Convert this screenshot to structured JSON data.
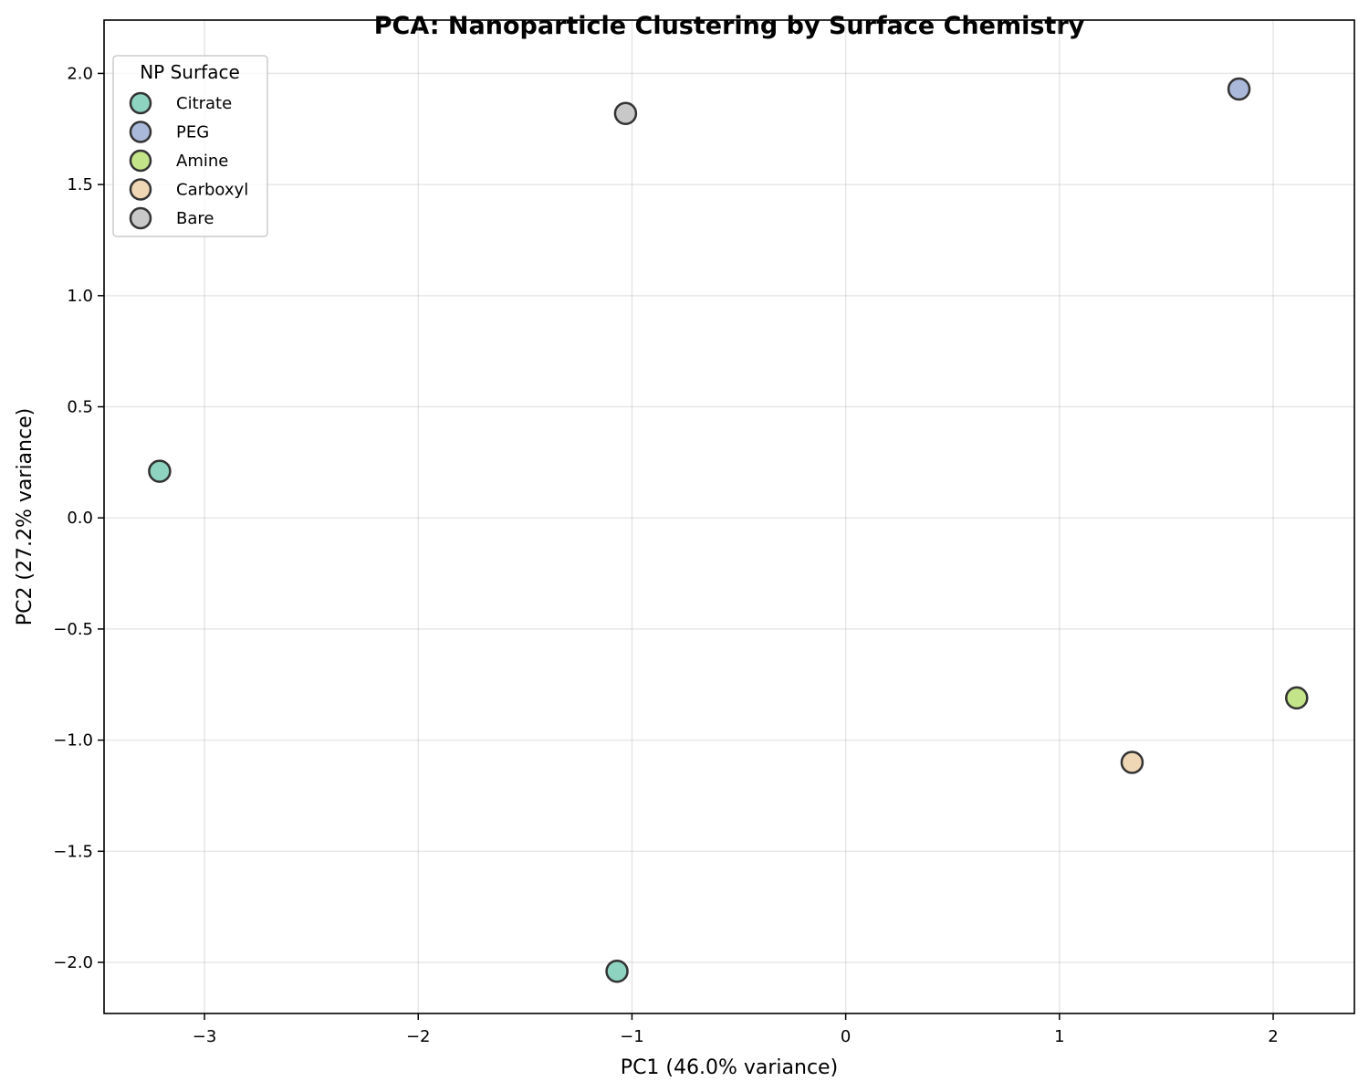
{
  "chart_data": {
    "type": "scatter",
    "title": "PCA: Nanoparticle Clustering by Surface Chemistry",
    "xlabel": "PC1 (46.0% variance)",
    "ylabel": "PC2 (27.2% variance)",
    "xlim": [
      -3.47,
      2.38
    ],
    "ylim": [
      -2.23,
      2.24
    ],
    "xticks": [
      -3,
      -2,
      -1,
      0,
      1,
      2
    ],
    "xtick_labels": [
      "−3",
      "−2",
      "−1",
      "0",
      "1",
      "2"
    ],
    "yticks": [
      -2.0,
      -1.5,
      -1.0,
      -0.5,
      0.0,
      0.5,
      1.0,
      1.5,
      2.0
    ],
    "ytick_labels": [
      "−2.0",
      "−1.5",
      "−1.0",
      "−0.5",
      "0.0",
      "0.5",
      "1.0",
      "1.5",
      "2.0"
    ],
    "grid": true,
    "legend": {
      "title": "NP Surface",
      "position": "upper left",
      "entries": [
        "Citrate",
        "PEG",
        "Amine",
        "Carboxyl",
        "Bare"
      ]
    },
    "series": [
      {
        "name": "Citrate",
        "color": "#8dd3c0",
        "points": [
          [
            -3.21,
            0.21
          ],
          [
            -1.07,
            -2.04
          ]
        ]
      },
      {
        "name": "PEG",
        "color": "#aab8da",
        "points": [
          [
            1.84,
            1.93
          ]
        ]
      },
      {
        "name": "Amine",
        "color": "#c3e488",
        "points": [
          [
            2.11,
            -0.81
          ]
        ]
      },
      {
        "name": "Carboxyl",
        "color": "#efd6b4",
        "points": [
          [
            1.34,
            -1.1
          ]
        ]
      },
      {
        "name": "Bare",
        "color": "#c8c8c8",
        "points": [
          [
            -1.03,
            1.82
          ]
        ]
      }
    ],
    "marker_edge_color": "#333333"
  }
}
